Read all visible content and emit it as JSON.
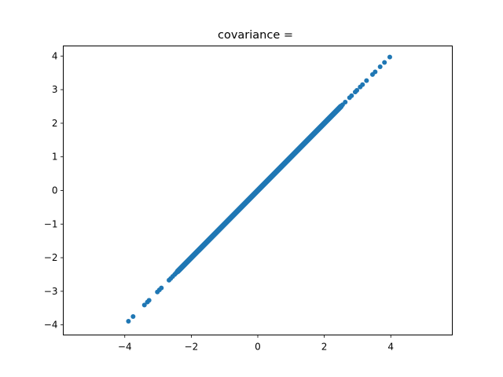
{
  "chart_data": {
    "type": "scatter",
    "title": "covariance =",
    "xlabel": "",
    "ylabel": "",
    "xlim": [
      -5.85,
      5.85
    ],
    "ylim": [
      -4.3,
      4.3
    ],
    "grid": false,
    "legend": "none",
    "marker_color": "#1f77b4",
    "x_ticks": [
      {
        "value": -4,
        "label": "−4"
      },
      {
        "value": -2,
        "label": "−2"
      },
      {
        "value": 0,
        "label": "0"
      },
      {
        "value": 2,
        "label": "2"
      },
      {
        "value": 4,
        "label": "4"
      }
    ],
    "y_ticks": [
      {
        "value": -4,
        "label": "−4"
      },
      {
        "value": -3,
        "label": "−3"
      },
      {
        "value": -2,
        "label": "−2"
      },
      {
        "value": -1,
        "label": "−1"
      },
      {
        "value": 0,
        "label": "0"
      },
      {
        "value": 1,
        "label": "1"
      },
      {
        "value": 2,
        "label": "2"
      },
      {
        "value": 3,
        "label": "3"
      },
      {
        "value": 4,
        "label": "4"
      }
    ],
    "series": [
      {
        "x": [
          -3.89,
          -3.75,
          -3.41,
          -3.32,
          -3.27,
          -3.02,
          -2.96,
          -2.9,
          -2.67,
          -2.62,
          -2.56,
          -2.5,
          -2.46,
          -2.41,
          -2.36,
          -2.3,
          -2.2,
          -2.1,
          -2.0,
          -1.9,
          -1.8,
          -1.7,
          -1.6,
          -1.5,
          -1.4,
          -1.3,
          -1.2,
          -1.1,
          -1.0,
          -0.9,
          -0.8,
          -0.7,
          -0.6,
          -0.5,
          -0.4,
          -0.3,
          -0.2,
          -0.1,
          0.0,
          0.1,
          0.2,
          0.3,
          0.4,
          0.5,
          0.6,
          0.7,
          0.8,
          0.9,
          1.0,
          1.1,
          1.2,
          1.3,
          1.4,
          1.5,
          1.6,
          1.7,
          1.8,
          1.9,
          2.0,
          2.1,
          2.2,
          2.3,
          2.4,
          2.5,
          2.55,
          2.63,
          2.76,
          2.82,
          2.93,
          2.98,
          3.08,
          3.15,
          3.27,
          3.45,
          3.53,
          3.68,
          3.81,
          3.97
        ],
        "y": [
          -3.89,
          -3.75,
          -3.41,
          -3.32,
          -3.27,
          -3.02,
          -2.96,
          -2.9,
          -2.67,
          -2.62,
          -2.56,
          -2.5,
          -2.46,
          -2.41,
          -2.36,
          -2.3,
          -2.2,
          -2.1,
          -2.0,
          -1.9,
          -1.8,
          -1.7,
          -1.6,
          -1.5,
          -1.4,
          -1.3,
          -1.2,
          -1.1,
          -1.0,
          -0.9,
          -0.8,
          -0.7,
          -0.6,
          -0.5,
          -0.4,
          -0.3,
          -0.2,
          -0.1,
          0.0,
          0.1,
          0.2,
          0.3,
          0.4,
          0.5,
          0.6,
          0.7,
          0.8,
          0.9,
          1.0,
          1.1,
          1.2,
          1.3,
          1.4,
          1.5,
          1.6,
          1.7,
          1.8,
          1.9,
          2.0,
          2.1,
          2.2,
          2.3,
          2.4,
          2.5,
          2.55,
          2.63,
          2.76,
          2.82,
          2.93,
          2.98,
          3.08,
          3.15,
          3.27,
          3.45,
          3.53,
          3.68,
          3.81,
          3.97
        ]
      }
    ]
  }
}
